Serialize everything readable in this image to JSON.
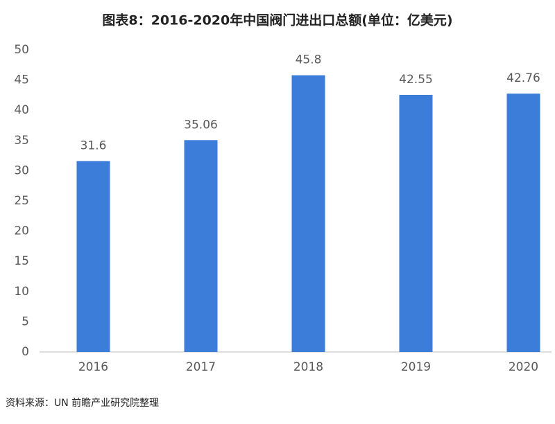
{
  "chart_data": {
    "type": "bar",
    "title": "图表8：2016-2020年中国阀门进出口总额(单位：亿美元)",
    "categories": [
      "2016",
      "2017",
      "2018",
      "2019",
      "2020"
    ],
    "values": [
      31.6,
      35.06,
      45.8,
      42.55,
      42.76
    ],
    "color": "#3b7dd8",
    "ylim": [
      0,
      50
    ],
    "yticks": [
      0,
      5,
      10,
      15,
      20,
      25,
      30,
      35,
      40,
      45,
      50
    ],
    "grid": false,
    "source": "资料来源：UN 前瞻产业研究院整理"
  }
}
